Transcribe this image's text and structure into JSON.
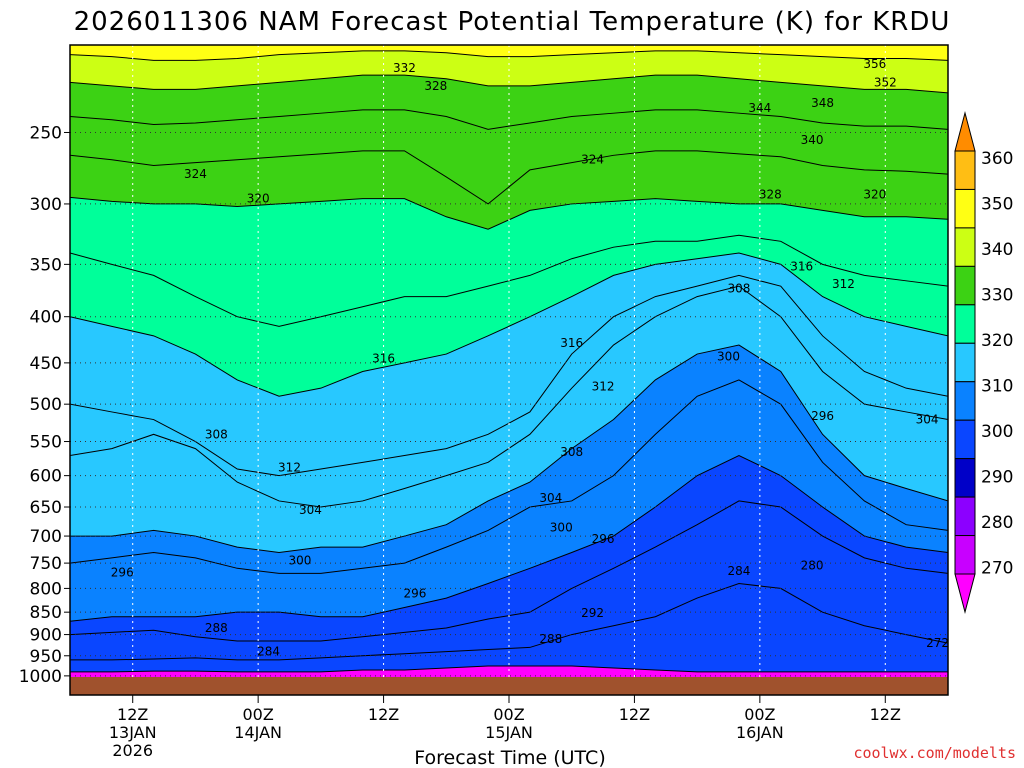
{
  "chart_data": {
    "type": "heatmap",
    "title": "2026011306 NAM Forecast Potential Temperature (K) for KRDU",
    "xlabel": "Forecast Time (UTC)",
    "ylabel": "",
    "credit": "coolwx.com/modelts",
    "y_ticks": [
      "250",
      "300",
      "350",
      "400",
      "450",
      "500",
      "550",
      "600",
      "650",
      "700",
      "750",
      "800",
      "850",
      "900",
      "950",
      "1000"
    ],
    "y_tick_values": [
      250,
      300,
      350,
      400,
      450,
      500,
      550,
      600,
      650,
      700,
      750,
      800,
      850,
      900,
      950,
      1000
    ],
    "ylim": [
      200,
      1050
    ],
    "y_scale": "log",
    "y_inverted": true,
    "x_ticks": [
      {
        "hours": 6,
        "lines": [
          "12Z",
          "13JAN",
          "2026"
        ]
      },
      {
        "hours": 18,
        "lines": [
          "00Z",
          "14JAN"
        ]
      },
      {
        "hours": 30,
        "lines": [
          "12Z"
        ]
      },
      {
        "hours": 42,
        "lines": [
          "00Z",
          "15JAN"
        ]
      },
      {
        "hours": 54,
        "lines": [
          "12Z"
        ]
      },
      {
        "hours": 66,
        "lines": [
          "00Z",
          "16JAN"
        ]
      },
      {
        "hours": 78,
        "lines": [
          "12Z"
        ]
      }
    ],
    "xlim_hours": [
      0,
      84
    ],
    "colorbar": {
      "labels": [
        "360",
        "350",
        "340",
        "330",
        "320",
        "310",
        "300",
        "290",
        "280",
        "270"
      ],
      "levels": [
        360,
        350,
        340,
        330,
        320,
        310,
        300,
        290,
        280,
        270
      ],
      "colors": [
        "#ff8c00",
        "#ffbe14",
        "#ffff14",
        "#ccff14",
        "#3cd214",
        "#00ff9a",
        "#28c8ff",
        "#0a82ff",
        "#0a46ff",
        "#0000c8",
        "#8c00ff",
        "#c800ff",
        "#ff00ff"
      ]
    },
    "series": [
      {
        "name": "",
        "x": [
          0,
          4,
          8,
          12,
          16,
          20,
          24,
          28,
          32,
          36,
          40,
          44,
          48,
          52,
          56,
          60,
          64,
          68,
          72,
          76,
          80,
          84
        ],
        "y": [
          990,
          990,
          988,
          988,
          990,
          990,
          990,
          985,
          985,
          980,
          975,
          975,
          975,
          980,
          985,
          990,
          990,
          990,
          990,
          990,
          990,
          990
        ],
        "value": 280
      },
      {
        "name": "",
        "x": [
          0,
          4,
          8,
          12,
          16,
          20,
          24,
          28,
          32,
          36,
          40,
          44,
          48,
          52,
          56,
          60,
          64,
          68,
          72,
          76,
          80,
          84
        ],
        "y": [
          960,
          960,
          958,
          955,
          960,
          960,
          955,
          950,
          945,
          940,
          935,
          930,
          900,
          880,
          860,
          820,
          790,
          800,
          850,
          880,
          900,
          920
        ],
        "value": 284
      },
      {
        "name": "",
        "x": [
          0,
          4,
          8,
          12,
          16,
          20,
          24,
          28,
          32,
          36,
          40,
          44,
          48,
          52,
          56,
          60,
          64,
          68,
          72,
          76,
          80,
          84
        ],
        "y": [
          900,
          895,
          890,
          905,
          915,
          915,
          915,
          905,
          895,
          885,
          865,
          850,
          800,
          760,
          720,
          680,
          640,
          650,
          700,
          740,
          760,
          770
        ],
        "value": 288
      },
      {
        "name": "",
        "x": [
          0,
          4,
          8,
          12,
          16,
          20,
          24,
          28,
          32,
          36,
          40,
          44,
          48,
          52,
          56,
          60,
          64,
          68,
          72,
          76,
          80,
          84
        ],
        "y": [
          870,
          860,
          860,
          860,
          850,
          850,
          860,
          860,
          840,
          820,
          790,
          760,
          730,
          700,
          650,
          600,
          570,
          600,
          650,
          700,
          720,
          730
        ],
        "value": 292
      },
      {
        "name": "",
        "x": [
          0,
          4,
          8,
          12,
          16,
          20,
          24,
          28,
          32,
          36,
          40,
          44,
          48,
          52,
          56,
          60,
          64,
          68,
          72,
          76,
          80,
          84
        ],
        "y": [
          750,
          740,
          730,
          740,
          760,
          770,
          770,
          760,
          750,
          720,
          690,
          650,
          640,
          600,
          540,
          490,
          470,
          500,
          580,
          640,
          680,
          690
        ],
        "value": 296
      },
      {
        "name": "",
        "x": [
          0,
          4,
          8,
          12,
          16,
          20,
          24,
          28,
          32,
          36,
          40,
          44,
          48,
          52,
          56,
          60,
          64,
          68,
          72,
          76,
          80,
          84
        ],
        "y": [
          700,
          700,
          690,
          700,
          720,
          730,
          720,
          720,
          700,
          680,
          640,
          610,
          560,
          520,
          470,
          440,
          430,
          460,
          540,
          600,
          620,
          640
        ],
        "value": 300
      },
      {
        "name": "",
        "x": [
          0,
          4,
          8,
          12,
          16,
          20,
          24,
          28,
          32,
          36,
          40,
          44,
          48,
          52,
          56,
          60,
          64,
          68,
          72,
          76,
          80,
          84
        ],
        "y": [
          570,
          560,
          540,
          560,
          610,
          640,
          650,
          640,
          620,
          600,
          580,
          540,
          480,
          430,
          400,
          380,
          370,
          400,
          460,
          500,
          510,
          520
        ],
        "value": 304
      },
      {
        "name": "",
        "x": [
          0,
          4,
          8,
          12,
          16,
          20,
          24,
          28,
          32,
          36,
          40,
          44,
          48,
          52,
          56,
          60,
          64,
          68,
          72,
          76,
          80,
          84
        ],
        "y": [
          500,
          510,
          520,
          550,
          590,
          600,
          590,
          580,
          570,
          560,
          540,
          510,
          440,
          400,
          380,
          370,
          360,
          370,
          420,
          460,
          480,
          490
        ],
        "value": 308
      },
      {
        "name": "",
        "x": [
          0,
          4,
          8,
          12,
          16,
          20,
          24,
          28,
          32,
          36,
          40,
          44,
          48,
          52,
          56,
          60,
          64,
          68,
          72,
          76,
          80,
          84
        ],
        "y": [
          400,
          410,
          420,
          440,
          470,
          490,
          480,
          460,
          450,
          440,
          420,
          400,
          380,
          360,
          350,
          345,
          340,
          350,
          380,
          400,
          410,
          420
        ],
        "value": 312
      },
      {
        "name": "",
        "x": [
          0,
          4,
          8,
          12,
          16,
          20,
          24,
          28,
          32,
          36,
          40,
          44,
          48,
          52,
          56,
          60,
          64,
          68,
          72,
          76,
          80,
          84
        ],
        "y": [
          340,
          350,
          360,
          380,
          400,
          410,
          400,
          390,
          380,
          380,
          370,
          360,
          345,
          335,
          330,
          330,
          325,
          330,
          350,
          360,
          365,
          370
        ],
        "value": 316
      },
      {
        "name": "",
        "x": [
          0,
          4,
          8,
          12,
          16,
          20,
          24,
          28,
          32,
          36,
          40,
          44,
          48,
          52,
          56,
          60,
          64,
          68,
          72,
          76,
          80,
          84
        ],
        "y": [
          295,
          298,
          300,
          300,
          302,
          300,
          298,
          296,
          296,
          310,
          320,
          305,
          300,
          298,
          296,
          298,
          300,
          300,
          305,
          310,
          310,
          312
        ],
        "value": 320
      },
      {
        "name": "",
        "x": [
          0,
          4,
          8,
          12,
          16,
          20,
          24,
          28,
          32,
          36,
          40,
          44,
          48,
          52,
          56,
          60,
          64,
          68,
          72,
          76,
          80,
          84
        ],
        "y": [
          265,
          268,
          272,
          270,
          268,
          266,
          264,
          262,
          262,
          280,
          300,
          275,
          270,
          265,
          262,
          262,
          264,
          266,
          272,
          275,
          276,
          278
        ],
        "value": 324
      },
      {
        "name": "",
        "x": [
          0,
          4,
          8,
          12,
          16,
          20,
          24,
          28,
          32,
          36,
          40,
          44,
          48,
          52,
          56,
          60,
          64,
          68,
          72,
          76,
          80,
          84
        ],
        "y": [
          240,
          242,
          245,
          244,
          242,
          240,
          238,
          236,
          236,
          240,
          248,
          244,
          240,
          238,
          236,
          236,
          238,
          240,
          244,
          246,
          246,
          248
        ],
        "value": 328
      },
      {
        "name": "",
        "x": [
          0,
          4,
          8,
          12,
          16,
          20,
          24,
          28,
          32,
          36,
          40,
          44,
          48,
          52,
          56,
          60,
          64,
          68,
          72,
          76,
          80,
          84
        ],
        "y": [
          220,
          222,
          224,
          224,
          222,
          220,
          218,
          216,
          216,
          218,
          222,
          222,
          220,
          218,
          216,
          216,
          218,
          220,
          222,
          224,
          224,
          226
        ],
        "value": 332
      },
      {
        "name": "",
        "x": [
          0,
          4,
          8,
          12,
          16,
          20,
          24,
          28,
          32,
          36,
          40,
          44,
          48,
          52,
          56,
          60,
          64,
          68,
          72,
          76,
          80,
          84
        ],
        "y": [
          205,
          206,
          208,
          208,
          207,
          205,
          204,
          203,
          203,
          204,
          206,
          206,
          205,
          204,
          203,
          203,
          204,
          205,
          206,
          207,
          207,
          208
        ],
        "value": 340
      },
      {
        "name": "",
        "x": [
          0,
          4,
          8,
          12,
          16,
          20,
          24,
          28,
          32,
          36,
          40,
          44,
          48,
          52,
          56,
          60,
          64,
          68,
          72,
          76,
          80,
          84
        ],
        "y": [
          200,
          200,
          200,
          200,
          200,
          200,
          200,
          200,
          200,
          200,
          200,
          200,
          200,
          200,
          200,
          200,
          200,
          200,
          200,
          200,
          200,
          200
        ],
        "value": 344
      }
    ],
    "contour_labels": [
      {
        "text": "332",
        "x": 32,
        "y": 212
      },
      {
        "text": "328",
        "x": 35,
        "y": 222
      },
      {
        "text": "356",
        "x": 77,
        "y": 210
      },
      {
        "text": "352",
        "x": 78,
        "y": 220
      },
      {
        "text": "344",
        "x": 66,
        "y": 235
      },
      {
        "text": "348",
        "x": 72,
        "y": 232
      },
      {
        "text": "340",
        "x": 71,
        "y": 255
      },
      {
        "text": "324",
        "x": 12,
        "y": 278
      },
      {
        "text": "324",
        "x": 50,
        "y": 268
      },
      {
        "text": "320",
        "x": 18,
        "y": 296
      },
      {
        "text": "328",
        "x": 67,
        "y": 293
      },
      {
        "text": "320",
        "x": 77,
        "y": 293
      },
      {
        "text": "316",
        "x": 70,
        "y": 352
      },
      {
        "text": "312",
        "x": 74,
        "y": 368
      },
      {
        "text": "308",
        "x": 64,
        "y": 372
      },
      {
        "text": "316",
        "x": 48,
        "y": 428
      },
      {
        "text": "316",
        "x": 30,
        "y": 445
      },
      {
        "text": "312",
        "x": 51,
        "y": 478
      },
      {
        "text": "300",
        "x": 63,
        "y": 443
      },
      {
        "text": "296",
        "x": 72,
        "y": 515
      },
      {
        "text": "304",
        "x": 82,
        "y": 520
      },
      {
        "text": "308",
        "x": 14,
        "y": 540
      },
      {
        "text": "308",
        "x": 48,
        "y": 565
      },
      {
        "text": "312",
        "x": 21,
        "y": 588
      },
      {
        "text": "304",
        "x": 46,
        "y": 635
      },
      {
        "text": "304",
        "x": 23,
        "y": 655
      },
      {
        "text": "300",
        "x": 47,
        "y": 685
      },
      {
        "text": "296",
        "x": 51,
        "y": 705
      },
      {
        "text": "300",
        "x": 22,
        "y": 745
      },
      {
        "text": "296",
        "x": 5,
        "y": 768
      },
      {
        "text": "284",
        "x": 64,
        "y": 765
      },
      {
        "text": "280",
        "x": 71,
        "y": 755
      },
      {
        "text": "296",
        "x": 33,
        "y": 810
      },
      {
        "text": "292",
        "x": 50,
        "y": 852
      },
      {
        "text": "288",
        "x": 14,
        "y": 885
      },
      {
        "text": "288",
        "x": 46,
        "y": 910
      },
      {
        "text": "284",
        "x": 19,
        "y": 940
      },
      {
        "text": "272",
        "x": 83,
        "y": 920
      }
    ]
  }
}
